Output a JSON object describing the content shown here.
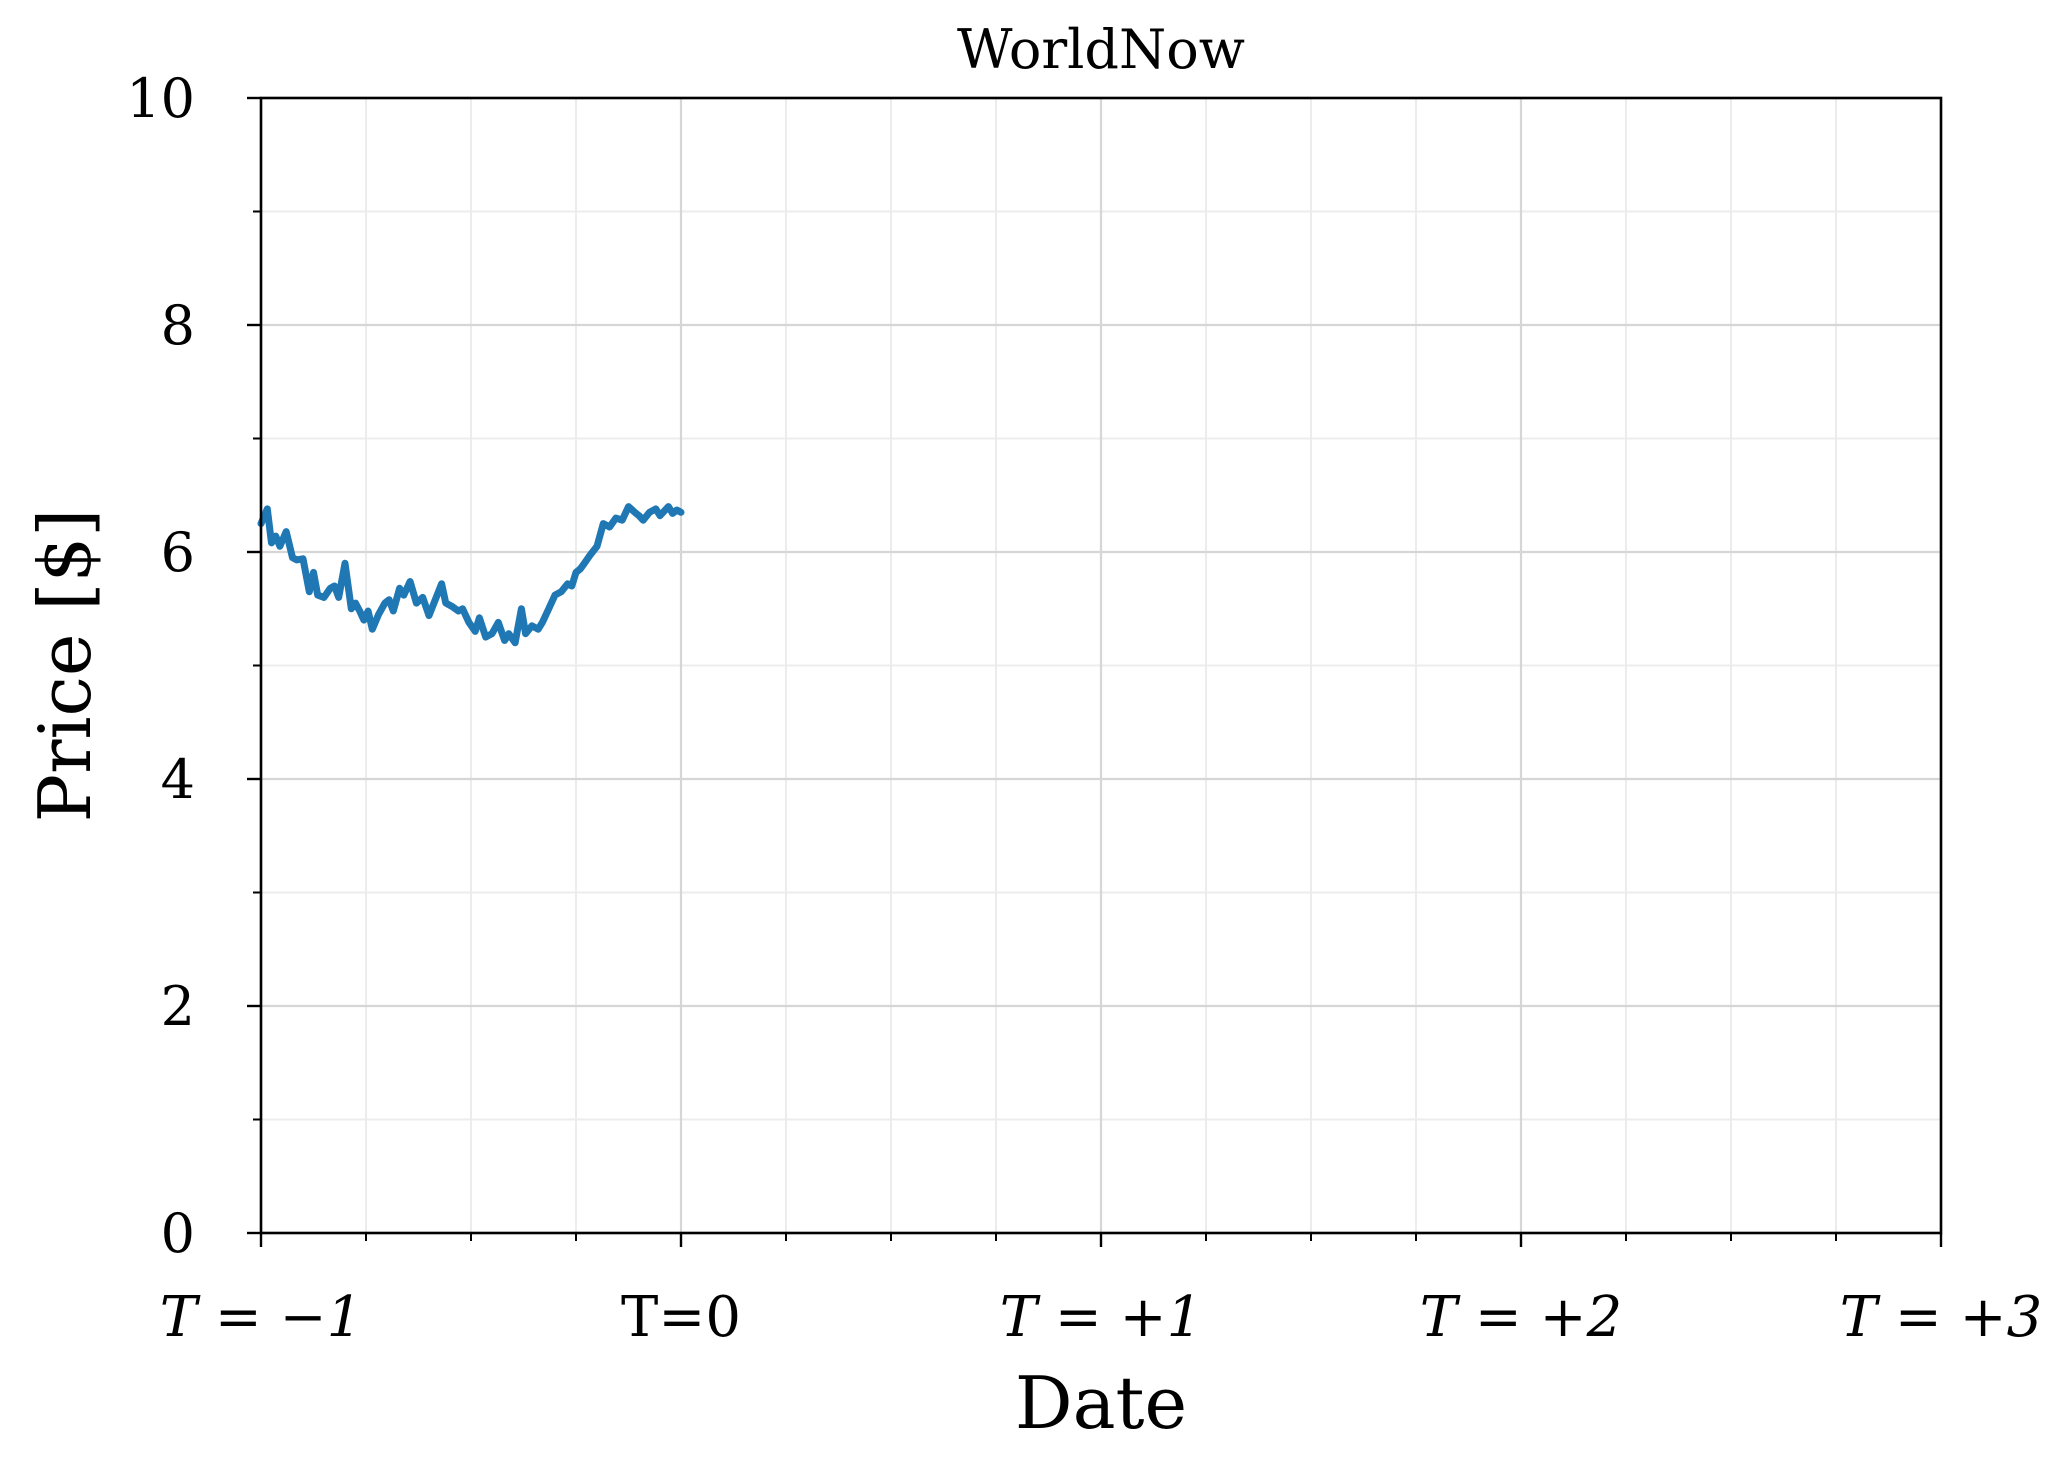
{
  "chart_data": {
    "type": "line",
    "title": "WorldNow",
    "xlabel": "Date",
    "ylabel": "Price [$]",
    "xlim": [
      -1,
      3
    ],
    "ylim": [
      0,
      10
    ],
    "x_ticks": [
      {
        "value": -1,
        "label": "T = −1"
      },
      {
        "value": 0,
        "label": "T=0"
      },
      {
        "value": 1,
        "label": "T = +1"
      },
      {
        "value": 2,
        "label": "T = +2"
      },
      {
        "value": 3,
        "label": "T = +3"
      }
    ],
    "y_ticks": [
      {
        "value": 0,
        "label": "0"
      },
      {
        "value": 2,
        "label": "2"
      },
      {
        "value": 4,
        "label": "4"
      },
      {
        "value": 6,
        "label": "6"
      },
      {
        "value": 8,
        "label": "8"
      },
      {
        "value": 10,
        "label": "10"
      }
    ],
    "x_minor_step": 0.25,
    "y_minor_step": 1,
    "grid": true,
    "line_color": "#1f77b4",
    "series": [
      {
        "x": [
          -1.0,
          -0.985,
          -0.975,
          -0.965,
          -0.955,
          -0.94,
          -0.925,
          -0.915,
          -0.9,
          -0.885,
          -0.875,
          -0.865,
          -0.85,
          -0.835,
          -0.825,
          -0.815,
          -0.8,
          -0.785,
          -0.775,
          -0.765,
          -0.755,
          -0.745,
          -0.735,
          -0.72,
          -0.705,
          -0.695,
          -0.685,
          -0.67,
          -0.66,
          -0.645,
          -0.63,
          -0.615,
          -0.6,
          -0.585,
          -0.57,
          -0.56,
          -0.545,
          -0.53,
          -0.52,
          -0.505,
          -0.49,
          -0.48,
          -0.465,
          -0.45,
          -0.435,
          -0.42,
          -0.41,
          -0.395,
          -0.38,
          -0.37,
          -0.355,
          -0.34,
          -0.33,
          -0.315,
          -0.3,
          -0.285,
          -0.27,
          -0.26,
          -0.25,
          -0.24,
          -0.23,
          -0.215,
          -0.2,
          -0.185,
          -0.17,
          -0.155,
          -0.14,
          -0.125,
          -0.11,
          -0.1,
          -0.09,
          -0.075,
          -0.06,
          -0.05,
          -0.04,
          -0.03,
          -0.02,
          -0.01,
          0.0
        ],
        "y": [
          6.25,
          6.38,
          6.08,
          6.14,
          6.05,
          6.18,
          5.95,
          5.93,
          5.94,
          5.65,
          5.82,
          5.62,
          5.6,
          5.68,
          5.7,
          5.6,
          5.9,
          5.5,
          5.55,
          5.48,
          5.4,
          5.48,
          5.32,
          5.45,
          5.55,
          5.58,
          5.48,
          5.68,
          5.62,
          5.74,
          5.55,
          5.6,
          5.44,
          5.58,
          5.72,
          5.55,
          5.52,
          5.48,
          5.5,
          5.38,
          5.3,
          5.42,
          5.25,
          5.28,
          5.38,
          5.22,
          5.28,
          5.2,
          5.5,
          5.28,
          5.35,
          5.32,
          5.38,
          5.5,
          5.62,
          5.65,
          5.72,
          5.7,
          5.82,
          5.85,
          5.9,
          5.98,
          6.05,
          6.25,
          6.22,
          6.3,
          6.28,
          6.4,
          6.35,
          6.32,
          6.28,
          6.35,
          6.38,
          6.32,
          6.36,
          6.4,
          6.34,
          6.37,
          6.35
        ]
      }
    ]
  }
}
